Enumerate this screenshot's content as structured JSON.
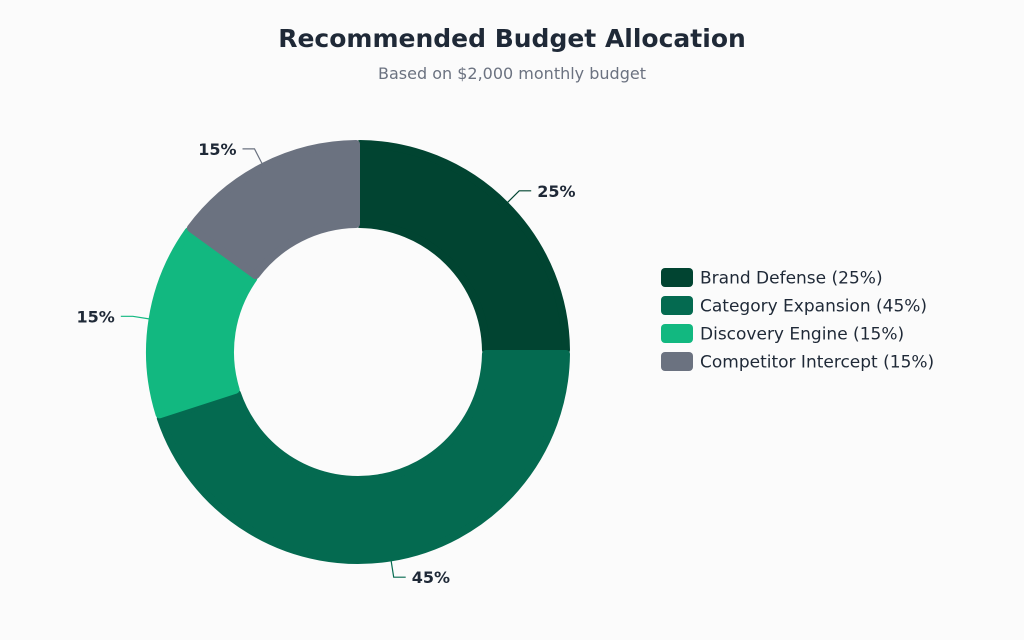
{
  "chart_data": {
    "type": "pie",
    "variant": "donut",
    "title": "Recommended Budget Allocation",
    "subtitle": "Based on $2,000 monthly budget",
    "legend_position": "right",
    "slices": [
      {
        "name": "Brand Defense",
        "value": 25,
        "label": "25%",
        "legend": "Brand Defense (25%)",
        "color": "#014431"
      },
      {
        "name": "Category Expansion",
        "value": 45,
        "label": "45%",
        "legend": "Category Expansion (45%)",
        "color": "#046a50"
      },
      {
        "name": "Discovery Engine",
        "value": 15,
        "label": "15%",
        "legend": "Discovery Engine (15%)",
        "color": "#12b880"
      },
      {
        "name": "Competitor Intercept",
        "value": 15,
        "label": "15%",
        "legend": "Competitor Intercept (15%)",
        "color": "#6b7280"
      }
    ]
  }
}
